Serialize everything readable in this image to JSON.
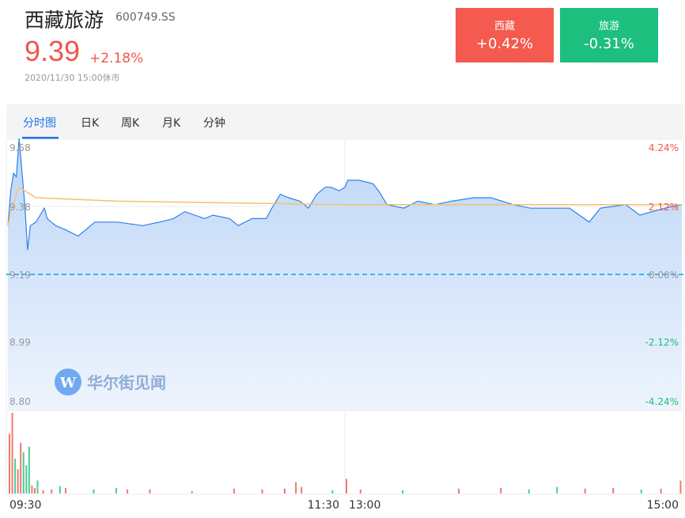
{
  "stock": {
    "name": "西藏旅游",
    "code": "600749.SS",
    "price": "9.39",
    "change_pct": "+2.18%",
    "timestamp": "2020/11/30 15:00休市"
  },
  "sectors": [
    {
      "name": "西藏",
      "change": "+0.42%",
      "color": "#f45a4f"
    },
    {
      "name": "旅游",
      "change": "-0.31%",
      "color": "#1dbf7e"
    }
  ],
  "tabs": [
    {
      "label": "分时图",
      "active": true
    },
    {
      "label": "日K"
    },
    {
      "label": "周K"
    },
    {
      "label": "月K"
    },
    {
      "label": "分钟"
    }
  ],
  "watermark": "华尔街见闻",
  "colors": {
    "price_line": "#2f80ed",
    "avg_line": "#f7c06b",
    "up": "#f0554d",
    "down": "#1dbf7e",
    "prev_close": "#3db3f0"
  },
  "chart_data": {
    "type": "line",
    "prev_close": 9.19,
    "ylim": [
      8.8,
      9.58
    ],
    "y_ticks_left": [
      "9.58",
      "9.38",
      "9.19",
      "8.99",
      "8.80"
    ],
    "y_ticks_right": [
      "4.24%",
      "2.12%",
      "0.00%",
      "-2.12%",
      "-4.24%"
    ],
    "x_ticks": [
      "09:30",
      "11:30",
      "13:00",
      "15:00"
    ],
    "price": [
      [
        "09:30",
        9.33
      ],
      [
        "09:31",
        9.43
      ],
      [
        "09:32",
        9.48
      ],
      [
        "09:33",
        9.47
      ],
      [
        "09:34",
        9.58
      ],
      [
        "09:36",
        9.39
      ],
      [
        "09:37",
        9.26
      ],
      [
        "09:38",
        9.33
      ],
      [
        "09:40",
        9.34
      ],
      [
        "09:43",
        9.38
      ],
      [
        "09:44",
        9.35
      ],
      [
        "09:47",
        9.33
      ],
      [
        "09:50",
        9.32
      ],
      [
        "09:55",
        9.3
      ],
      [
        "10:01",
        9.34
      ],
      [
        "10:09",
        9.34
      ],
      [
        "10:18",
        9.33
      ],
      [
        "10:24",
        9.34
      ],
      [
        "10:29",
        9.35
      ],
      [
        "10:33",
        9.37
      ],
      [
        "10:40",
        9.35
      ],
      [
        "10:43",
        9.36
      ],
      [
        "10:49",
        9.35
      ],
      [
        "10:52",
        9.33
      ],
      [
        "10:57",
        9.35
      ],
      [
        "11:02",
        9.35
      ],
      [
        "11:04",
        9.38
      ],
      [
        "11:07",
        9.42
      ],
      [
        "11:10",
        9.41
      ],
      [
        "11:14",
        9.4
      ],
      [
        "11:17",
        9.38
      ],
      [
        "11:20",
        9.42
      ],
      [
        "11:23",
        9.44
      ],
      [
        "11:25",
        9.44
      ],
      [
        "11:28",
        9.43
      ],
      [
        "11:30",
        9.44
      ],
      [
        "13:01",
        9.46
      ],
      [
        "13:05",
        9.46
      ],
      [
        "13:10",
        9.45
      ],
      [
        "13:12",
        9.43
      ],
      [
        "13:15",
        9.39
      ],
      [
        "13:21",
        9.38
      ],
      [
        "13:26",
        9.4
      ],
      [
        "13:32",
        9.39
      ],
      [
        "13:38",
        9.4
      ],
      [
        "13:46",
        9.41
      ],
      [
        "13:52",
        9.41
      ],
      [
        "14:00",
        9.39
      ],
      [
        "14:06",
        9.38
      ],
      [
        "14:12",
        9.38
      ],
      [
        "14:20",
        9.38
      ],
      [
        "14:27",
        9.34
      ],
      [
        "14:31",
        9.38
      ],
      [
        "14:40",
        9.39
      ],
      [
        "14:45",
        9.36
      ],
      [
        "14:54",
        9.38
      ],
      [
        "15:00",
        9.39
      ]
    ],
    "avg_price": [
      [
        "09:30",
        9.33
      ],
      [
        "09:31",
        9.37
      ],
      [
        "09:33",
        9.42
      ],
      [
        "09:34",
        9.44
      ],
      [
        "09:36",
        9.43
      ],
      [
        "09:40",
        9.41
      ],
      [
        "10:09",
        9.4
      ],
      [
        "11:30",
        9.39
      ],
      [
        "15:00",
        9.39
      ]
    ],
    "volume_relative": [
      [
        "09:30",
        74,
        "up"
      ],
      [
        "09:31",
        100,
        "up"
      ],
      [
        "09:32",
        43,
        "down"
      ],
      [
        "09:33",
        30,
        "up"
      ],
      [
        "09:34",
        63,
        "up"
      ],
      [
        "09:35",
        51,
        "down"
      ],
      [
        "09:36",
        35,
        "down"
      ],
      [
        "09:37",
        58,
        "down"
      ],
      [
        "09:38",
        10,
        "up"
      ],
      [
        "09:39",
        7,
        "up"
      ],
      [
        "09:40",
        16,
        "down"
      ],
      [
        "09:42",
        4,
        "up"
      ],
      [
        "09:45",
        5,
        "up"
      ],
      [
        "09:48",
        9,
        "down"
      ],
      [
        "09:50",
        7,
        "up"
      ],
      [
        "10:00",
        5,
        "down"
      ],
      [
        "10:08",
        7,
        "down"
      ],
      [
        "10:12",
        5,
        "up"
      ],
      [
        "10:20",
        5,
        "up"
      ],
      [
        "10:35",
        3,
        "down"
      ],
      [
        "10:50",
        6,
        "up"
      ],
      [
        "11:00",
        5,
        "up"
      ],
      [
        "11:08",
        6,
        "up"
      ],
      [
        "11:12",
        14,
        "up"
      ],
      [
        "11:14",
        8,
        "up"
      ],
      [
        "11:25",
        4,
        "down"
      ],
      [
        "11:30",
        18,
        "up"
      ],
      [
        "13:05",
        5,
        "up"
      ],
      [
        "13:20",
        4,
        "down"
      ],
      [
        "13:40",
        6,
        "up"
      ],
      [
        "13:55",
        7,
        "up"
      ],
      [
        "14:05",
        5,
        "down"
      ],
      [
        "14:15",
        8,
        "down"
      ],
      [
        "14:25",
        6,
        "up"
      ],
      [
        "14:35",
        7,
        "up"
      ],
      [
        "14:45",
        5,
        "down"
      ],
      [
        "14:52",
        6,
        "up"
      ],
      [
        "14:59",
        16,
        "up"
      ]
    ]
  }
}
